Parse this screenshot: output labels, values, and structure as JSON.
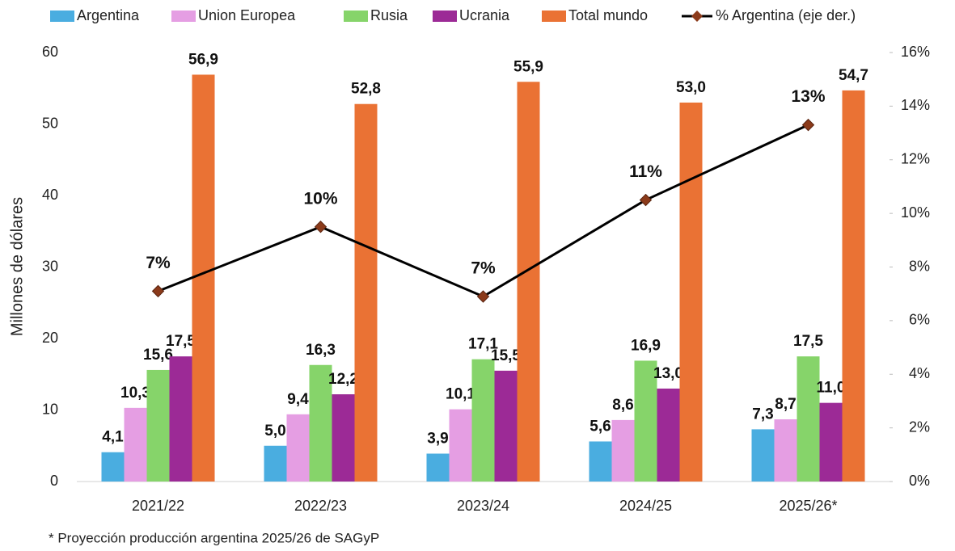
{
  "chart_data": {
    "type": "bar",
    "y_label": "Millones de dólares",
    "footnote": "* Proyección producción argentina 2025/26 de SAGyP",
    "categories": [
      "2021/22",
      "2022/23",
      "2023/24",
      "2024/25",
      "2025/26*"
    ],
    "series": [
      {
        "name": "Argentina",
        "color": "#4aade0",
        "values": [
          4.1,
          5.0,
          3.9,
          5.6,
          7.3
        ],
        "value_labels": [
          "4,1",
          "5,0",
          "3,9",
          "5,6",
          "7,3"
        ]
      },
      {
        "name": "Union Europea",
        "color": "#e59ee3",
        "values": [
          10.3,
          9.4,
          10.1,
          8.6,
          8.7
        ],
        "value_labels": [
          "10,3",
          "9,4",
          "10,1",
          "8,6",
          "8,7"
        ]
      },
      {
        "name": "Rusia",
        "color": "#86d46a",
        "values": [
          15.6,
          16.3,
          17.1,
          16.9,
          17.5
        ],
        "value_labels": [
          "15,6",
          "16,3",
          "17,1",
          "16,9",
          "17,5"
        ]
      },
      {
        "name": "Ucrania",
        "color": "#9c2a96",
        "values": [
          17.5,
          12.2,
          15.5,
          13.0,
          11.0
        ],
        "value_labels": [
          "17,5",
          "12,2",
          "15,5",
          "13,0",
          "11,0"
        ]
      },
      {
        "name": "Total mundo",
        "color": "#ea7234",
        "values": [
          56.9,
          52.8,
          55.9,
          53.0,
          54.7
        ],
        "value_labels": [
          "56,9",
          "52,8",
          "55,9",
          "53,0",
          "54,7"
        ]
      },
      {
        "name": "% Argentina (eje der.)",
        "type": "line",
        "axis": "y2",
        "color": "#000000",
        "marker_color": "#8b3a1a",
        "values": [
          7.1,
          9.5,
          6.9,
          10.5,
          13.3
        ],
        "value_labels": [
          "7%",
          "10%",
          "7%",
          "11%",
          "13%"
        ]
      }
    ],
    "ylim": [
      0,
      60
    ],
    "yticks": [
      0,
      10,
      20,
      30,
      40,
      50,
      60
    ],
    "y2lim": [
      0,
      16
    ],
    "y2ticks": [
      {
        "value": 0,
        "label": "0%"
      },
      {
        "value": 2,
        "label": "2%"
      },
      {
        "value": 4,
        "label": "4%"
      },
      {
        "value": 6,
        "label": "6%"
      },
      {
        "value": 8,
        "label": "8%"
      },
      {
        "value": 10,
        "label": "10%"
      },
      {
        "value": 12,
        "label": "12%"
      },
      {
        "value": 14,
        "label": "14%"
      },
      {
        "value": 16,
        "label": "16%"
      }
    ],
    "grid": false
  }
}
